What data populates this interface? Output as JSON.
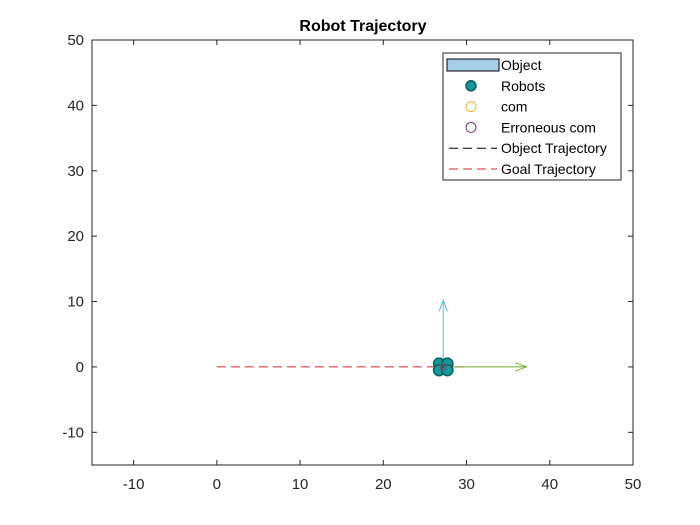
{
  "chart_data": {
    "type": "scatter",
    "title": "Robot Trajectory",
    "xlabel": "",
    "ylabel": "",
    "xlim": [
      -15,
      50
    ],
    "ylim": [
      -15,
      50
    ],
    "xticks": [
      -10,
      0,
      10,
      20,
      30,
      40,
      50
    ],
    "yticks": [
      -10,
      0,
      10,
      20,
      30,
      40,
      50
    ],
    "grid": false,
    "legend_position": "top-right",
    "legend": [
      {
        "label": "Object",
        "kind": "patch",
        "color": "#a6cee8"
      },
      {
        "label": "Robots",
        "kind": "marker-filled",
        "color": "#129a9a"
      },
      {
        "label": "com",
        "kind": "marker-open",
        "color": "#f0b21e"
      },
      {
        "label": "Erroneous com",
        "kind": "marker-open",
        "color": "#7e2f8e"
      },
      {
        "label": "Object Trajectory",
        "kind": "dashed-line",
        "color": "#000000"
      },
      {
        "label": "Goal Trajectory",
        "kind": "dashed-line",
        "color": "#d62728"
      }
    ],
    "goal_trajectory": {
      "x": [
        0,
        30
      ],
      "y": [
        0,
        0
      ],
      "color": "#d62728"
    },
    "robots": {
      "color": "#129a9a",
      "points": [
        {
          "x": 26.7,
          "y": 0.5
        },
        {
          "x": 27.7,
          "y": 0.5
        },
        {
          "x": 26.7,
          "y": -0.5
        },
        {
          "x": 27.7,
          "y": -0.5
        }
      ]
    },
    "com": {
      "x": 27.2,
      "y": 0,
      "color": "#f0b21e"
    },
    "erroneous_com": {
      "x": 27.2,
      "y": 0,
      "color": "#7e2f8e"
    },
    "arrows": [
      {
        "name": "x-axis-arrow",
        "from": [
          27.2,
          0
        ],
        "to": [
          37.2,
          0
        ],
        "color": "#77ac30"
      },
      {
        "name": "y-axis-arrow",
        "from": [
          27.2,
          0
        ],
        "to": [
          27.2,
          10.2
        ],
        "color": "#4dbeee"
      }
    ]
  }
}
